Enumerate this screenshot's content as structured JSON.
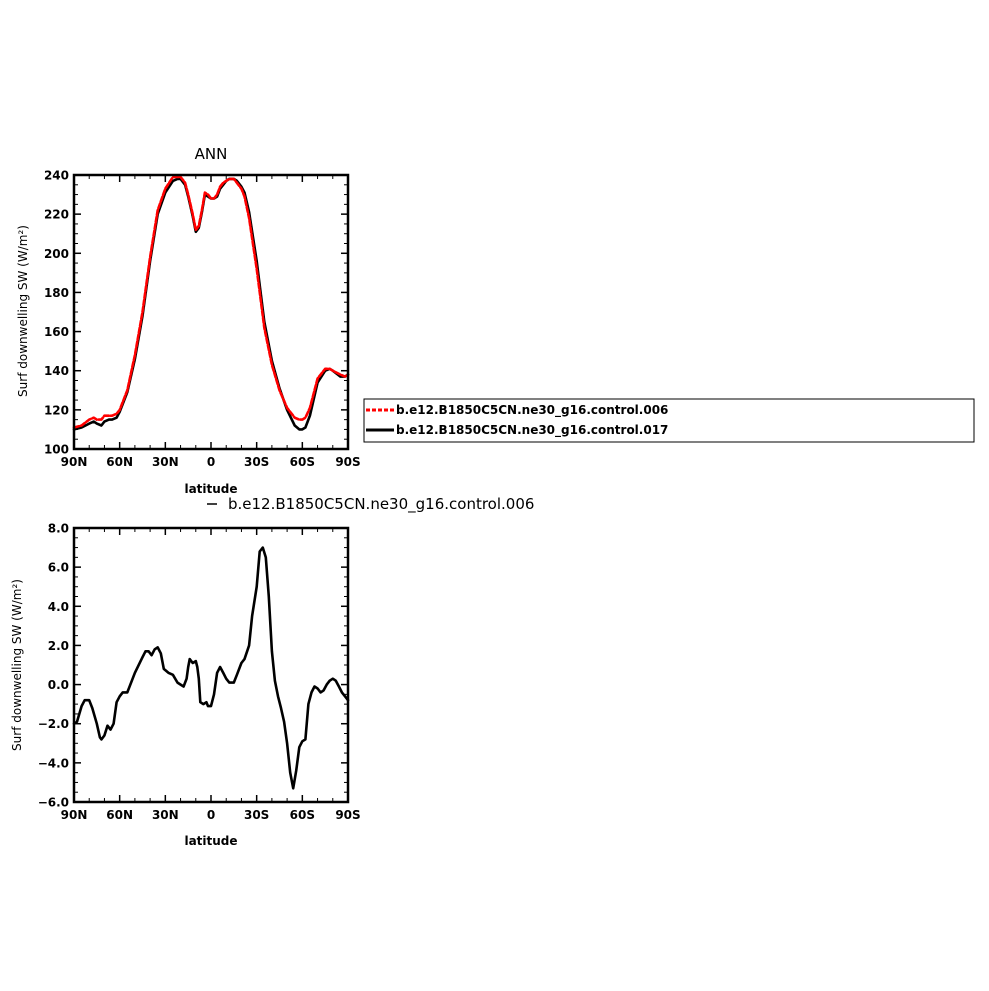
{
  "chart_data": [
    {
      "type": "line",
      "title": "ANN",
      "xlabel": "latitude",
      "ylabel": "Surf downwelling SW (W/m²)",
      "xlim": [
        90,
        -90
      ],
      "ylim": [
        100,
        240
      ],
      "x_ticks": [
        90,
        60,
        30,
        0,
        -30,
        -60,
        -90
      ],
      "x_tick_labels": [
        "90N",
        "60N",
        "30N",
        "0",
        "30S",
        "60S",
        "90S"
      ],
      "y_ticks": [
        100,
        120,
        140,
        160,
        180,
        200,
        220,
        240
      ],
      "y_tick_labels": [
        "100",
        "120",
        "140",
        "160",
        "180",
        "200",
        "220",
        "240"
      ],
      "legend_placement": "right",
      "x": [
        90,
        85,
        80,
        77,
        75,
        72,
        70,
        67,
        65,
        62,
        60,
        55,
        50,
        45,
        40,
        35,
        30,
        25,
        22,
        20,
        17,
        15,
        12,
        10,
        8,
        6,
        4,
        2,
        0,
        -2,
        -4,
        -6,
        -8,
        -10,
        -12,
        -15,
        -17,
        -20,
        -22,
        -25,
        -30,
        -35,
        -40,
        -45,
        -50,
        -55,
        -58,
        -60,
        -62,
        -65,
        -70,
        -75,
        -78,
        -80,
        -85,
        -88,
        -90
      ],
      "series": [
        {
          "name": "b.e12.B1850C5CN.ne30_g16.control.006",
          "color": "#ff0000",
          "style": "dashed",
          "values": [
            111,
            112,
            115,
            116,
            115,
            115,
            117,
            117,
            117,
            118,
            120,
            130,
            148,
            170,
            198,
            222,
            233,
            239,
            239,
            239,
            236,
            230,
            220,
            212,
            214,
            222,
            231,
            230,
            228,
            228,
            230,
            234,
            236,
            237,
            238,
            238,
            236,
            233,
            229,
            218,
            192,
            162,
            143,
            130,
            121,
            116,
            115,
            115,
            116,
            121,
            136,
            141,
            141,
            140,
            138,
            137,
            138
          ]
        },
        {
          "name": "b.e12.B1850C5CN.ne30_g16.control.017",
          "color": "#000000",
          "style": "solid",
          "values": [
            110,
            111,
            113,
            114,
            113,
            112,
            114,
            115,
            115,
            116,
            119,
            129,
            146,
            168,
            196,
            220,
            231,
            237,
            238,
            238,
            235,
            229,
            219,
            211,
            213,
            221,
            230,
            229,
            228,
            228,
            229,
            233,
            235,
            237,
            238,
            238,
            237,
            234,
            231,
            221,
            196,
            165,
            145,
            131,
            120,
            112,
            110,
            110,
            111,
            117,
            134,
            140,
            141,
            140,
            137,
            137,
            138
          ]
        }
      ]
    },
    {
      "type": "line",
      "title": "b.e12.B1850C5CN.ne30_g16.control.006",
      "xlabel": "latitude",
      "ylabel": "Surf downwelling SW (W/m²)",
      "xlim": [
        90,
        -90
      ],
      "ylim": [
        -6,
        8
      ],
      "x_ticks": [
        90,
        60,
        30,
        0,
        -30,
        -60,
        -90
      ],
      "x_tick_labels": [
        "90N",
        "60N",
        "30N",
        "0",
        "30S",
        "60S",
        "90S"
      ],
      "y_ticks": [
        -6,
        -4,
        -2,
        0,
        2,
        4,
        6,
        8
      ],
      "y_tick_labels": [
        "−6.0",
        "−4.0",
        "−2.0",
        "0.0",
        "2.0",
        "4.0",
        "6.0",
        "8.0"
      ],
      "x": [
        90,
        88,
        85,
        83,
        80,
        78,
        75,
        73,
        72,
        70,
        68,
        66,
        64,
        62,
        60,
        58,
        55,
        50,
        45,
        43,
        41,
        39,
        37,
        35,
        33,
        31,
        28,
        25,
        22,
        20,
        18,
        16,
        15,
        14,
        12,
        10,
        9,
        8,
        7,
        5,
        3,
        2,
        0,
        -2,
        -4,
        -6,
        -8,
        -10,
        -12,
        -15,
        -17,
        -20,
        -22,
        -25,
        -27,
        -30,
        -32,
        -34,
        -36,
        -38,
        -40,
        -42,
        -44,
        -46,
        -48,
        -50,
        -52,
        -54,
        -56,
        -58,
        -60,
        -62,
        -64,
        -66,
        -68,
        -70,
        -72,
        -74,
        -76,
        -78,
        -80,
        -82,
        -84,
        -86,
        -88,
        -90
      ],
      "series": [
        {
          "color": "#000000",
          "style": "solid",
          "values": [
            -2.0,
            -1.9,
            -1.1,
            -0.8,
            -0.8,
            -1.2,
            -2.0,
            -2.7,
            -2.8,
            -2.6,
            -2.1,
            -2.3,
            -2.0,
            -0.9,
            -0.6,
            -0.4,
            -0.4,
            0.6,
            1.4,
            1.7,
            1.7,
            1.5,
            1.8,
            1.9,
            1.6,
            0.8,
            0.6,
            0.5,
            0.1,
            0.0,
            -0.1,
            0.3,
            0.9,
            1.3,
            1.1,
            1.2,
            0.9,
            0.3,
            -0.9,
            -1.0,
            -0.9,
            -1.1,
            -1.1,
            -0.5,
            0.6,
            0.9,
            0.6,
            0.3,
            0.1,
            0.1,
            0.5,
            1.1,
            1.3,
            2.0,
            3.5,
            5.0,
            6.8,
            7.0,
            6.5,
            4.5,
            1.7,
            0.2,
            -0.6,
            -1.2,
            -1.9,
            -3.0,
            -4.5,
            -5.3,
            -4.4,
            -3.2,
            -2.9,
            -2.8,
            -1.0,
            -0.4,
            -0.1,
            -0.2,
            -0.4,
            -0.3,
            0.0,
            0.2,
            0.3,
            0.2,
            -0.1,
            -0.4,
            -0.6,
            -0.8
          ]
        }
      ]
    }
  ]
}
